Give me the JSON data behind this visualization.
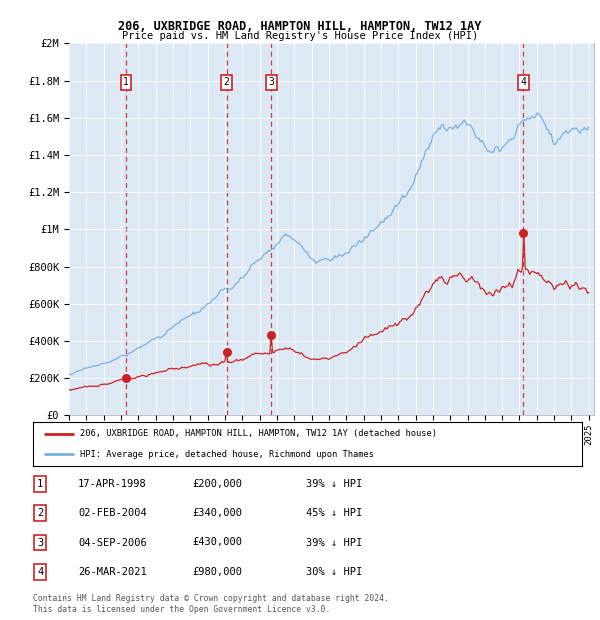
{
  "title1": "206, UXBRIDGE ROAD, HAMPTON HILL, HAMPTON, TW12 1AY",
  "title2": "Price paid vs. HM Land Registry's House Price Index (HPI)",
  "background_color": "#dce9f5",
  "hpi_color": "#7ab0e0",
  "price_color": "#cc2222",
  "vline_color_dashed": "#cc2222",
  "ylim": [
    0,
    2000000
  ],
  "xlim_start": 1995.0,
  "xlim_end": 2025.3,
  "yticks": [
    0,
    200000,
    400000,
    600000,
    800000,
    1000000,
    1200000,
    1400000,
    1600000,
    1800000,
    2000000
  ],
  "ytick_labels": [
    "£0",
    "£200K",
    "£400K",
    "£600K",
    "£800K",
    "£1M",
    "£1.2M",
    "£1.4M",
    "£1.6M",
    "£1.8M",
    "£2M"
  ],
  "xticks": [
    1995,
    1996,
    1997,
    1998,
    1999,
    2000,
    2001,
    2002,
    2003,
    2004,
    2005,
    2006,
    2007,
    2008,
    2009,
    2010,
    2011,
    2012,
    2013,
    2014,
    2015,
    2016,
    2017,
    2018,
    2019,
    2020,
    2021,
    2022,
    2023,
    2024,
    2025
  ],
  "sales": [
    {
      "num": 1,
      "date_label": "17-APR-1998",
      "year": 1998.29,
      "price": 200000,
      "pct": "39%"
    },
    {
      "num": 2,
      "date_label": "02-FEB-2004",
      "year": 2004.09,
      "price": 340000,
      "pct": "45%"
    },
    {
      "num": 3,
      "date_label": "04-SEP-2006",
      "year": 2006.67,
      "price": 430000,
      "pct": "39%"
    },
    {
      "num": 4,
      "date_label": "26-MAR-2021",
      "year": 2021.23,
      "price": 980000,
      "pct": "30%"
    }
  ],
  "legend_line1": "206, UXBRIDGE ROAD, HAMPTON HILL, HAMPTON, TW12 1AY (detached house)",
  "legend_line2": "HPI: Average price, detached house, Richmond upon Thames",
  "footer1": "Contains HM Land Registry data © Crown copyright and database right 2024.",
  "footer2": "This data is licensed under the Open Government Licence v3.0."
}
